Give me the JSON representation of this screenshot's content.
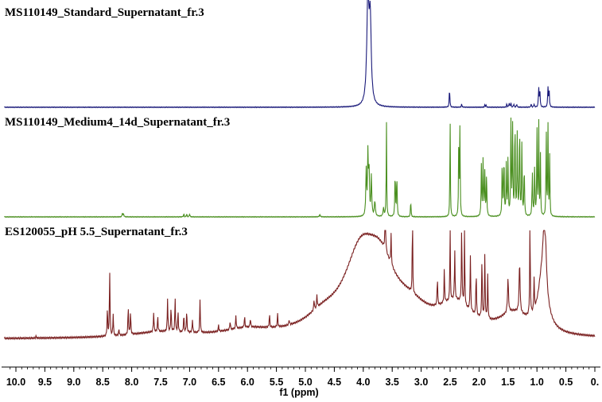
{
  "chart_data": {
    "type": "line",
    "xlabel": "f1 (ppm)",
    "x_reversed": true,
    "xlim": [
      10.2,
      0.0
    ],
    "ticks": [
      {
        "v": 10.0,
        "label": "10.0"
      },
      {
        "v": 9.5,
        "label": "9.5"
      },
      {
        "v": 9.0,
        "label": "9.0"
      },
      {
        "v": 8.5,
        "label": "8.5"
      },
      {
        "v": 8.0,
        "label": "8.0"
      },
      {
        "v": 7.5,
        "label": "7.5"
      },
      {
        "v": 7.0,
        "label": "7.0"
      },
      {
        "v": 6.5,
        "label": "6.5"
      },
      {
        "v": 6.0,
        "label": "6.0"
      },
      {
        "v": 5.5,
        "label": "5.5"
      },
      {
        "v": 5.0,
        "label": "5.0"
      },
      {
        "v": 4.5,
        "label": "4.5"
      },
      {
        "v": 4.0,
        "label": "4.0"
      },
      {
        "v": 3.5,
        "label": "3.5"
      },
      {
        "v": 3.0,
        "label": "3.0"
      },
      {
        "v": 2.5,
        "label": "2.5"
      },
      {
        "v": 2.0,
        "label": "2.0"
      },
      {
        "v": 1.5,
        "label": "1.5"
      },
      {
        "v": 1.0,
        "label": "1.0"
      },
      {
        "v": 0.5,
        "label": "0.5"
      },
      {
        "v": 0.0,
        "label": "0."
      }
    ],
    "grid": false,
    "series": [
      {
        "name": "MS110149_Standard_Supernatant_fr.3",
        "color": "#1a1a7a",
        "peaks": [
          [
            3.92,
            1.0,
            0.022
          ],
          [
            3.88,
            0.75,
            0.02
          ],
          [
            2.51,
            0.18,
            0.006
          ],
          [
            2.3,
            0.03,
            0.006
          ],
          [
            1.9,
            0.02,
            0.006
          ],
          [
            1.88,
            0.02,
            0.006
          ],
          [
            1.52,
            0.03,
            0.006
          ],
          [
            1.48,
            0.04,
            0.006
          ],
          [
            1.45,
            0.04,
            0.006
          ],
          [
            1.4,
            0.03,
            0.006
          ],
          [
            1.35,
            0.03,
            0.006
          ],
          [
            1.1,
            0.03,
            0.006
          ],
          [
            1.05,
            0.03,
            0.006
          ],
          [
            0.97,
            0.18,
            0.006
          ],
          [
            0.95,
            0.17,
            0.006
          ],
          [
            0.81,
            0.19,
            0.006
          ],
          [
            0.79,
            0.18,
            0.006
          ]
        ]
      },
      {
        "name": "MS110149_Medium4_14d_Supernatant_fr.3",
        "color": "#4a8f1f",
        "peaks": [
          [
            8.16,
            0.04,
            0.006
          ],
          [
            8.14,
            0.03,
            0.006
          ],
          [
            7.1,
            0.03,
            0.006
          ],
          [
            7.05,
            0.03,
            0.006
          ],
          [
            7.0,
            0.03,
            0.006
          ],
          [
            4.75,
            0.02,
            0.01
          ],
          [
            3.95,
            0.45,
            0.008
          ],
          [
            3.92,
            0.6,
            0.008
          ],
          [
            3.9,
            0.45,
            0.008
          ],
          [
            3.86,
            0.4,
            0.008
          ],
          [
            3.8,
            0.15,
            0.01
          ],
          [
            3.65,
            0.08,
            0.01
          ],
          [
            3.6,
            0.95,
            0.005
          ],
          [
            3.45,
            0.45,
            0.006
          ],
          [
            3.42,
            0.42,
            0.006
          ],
          [
            3.18,
            0.18,
            0.005
          ],
          [
            2.5,
            0.95,
            0.005
          ],
          [
            2.35,
            0.92,
            0.005
          ],
          [
            2.33,
            0.9,
            0.005
          ],
          [
            1.96,
            0.5,
            0.006
          ],
          [
            1.93,
            0.55,
            0.006
          ],
          [
            1.9,
            0.45,
            0.006
          ],
          [
            1.87,
            0.42,
            0.006
          ],
          [
            1.6,
            0.55,
            0.006
          ],
          [
            1.57,
            0.6,
            0.006
          ],
          [
            1.53,
            0.5,
            0.006
          ],
          [
            1.5,
            0.55,
            0.006
          ],
          [
            1.45,
            0.95,
            0.006
          ],
          [
            1.42,
            0.88,
            0.006
          ],
          [
            1.38,
            0.95,
            0.006
          ],
          [
            1.34,
            0.8,
            0.006
          ],
          [
            1.3,
            0.92,
            0.006
          ],
          [
            1.26,
            0.7,
            0.006
          ],
          [
            1.22,
            0.5,
            0.006
          ],
          [
            1.08,
            0.45,
            0.006
          ],
          [
            1.04,
            0.5,
            0.006
          ],
          [
            1.0,
            0.95,
            0.005
          ],
          [
            0.97,
            0.95,
            0.005
          ],
          [
            0.94,
            0.6,
            0.005
          ],
          [
            0.84,
            0.95,
            0.005
          ],
          [
            0.81,
            0.95,
            0.005
          ],
          [
            0.78,
            0.6,
            0.005
          ]
        ]
      },
      {
        "name": "ES120055_pH 5.5_Supernatant_fr.3",
        "color": "#7a2020",
        "broad": [
          [
            4.05,
            0.65,
            0.35
          ],
          [
            3.7,
            0.45,
            0.3
          ],
          [
            3.2,
            0.18,
            0.4
          ],
          [
            2.4,
            0.25,
            0.35
          ],
          [
            1.4,
            0.18,
            0.3
          ],
          [
            0.9,
            0.55,
            0.09
          ],
          [
            4.7,
            0.12,
            0.35
          ],
          [
            6.0,
            0.06,
            0.5
          ],
          [
            7.5,
            0.05,
            0.6
          ]
        ],
        "peaks": [
          [
            9.65,
            0.02,
            0.006
          ],
          [
            8.42,
            0.25,
            0.006
          ],
          [
            8.38,
            0.6,
            0.006
          ],
          [
            8.32,
            0.2,
            0.006
          ],
          [
            8.22,
            0.06,
            0.006
          ],
          [
            8.06,
            0.25,
            0.006
          ],
          [
            8.02,
            0.2,
            0.006
          ],
          [
            7.62,
            0.18,
            0.006
          ],
          [
            7.55,
            0.14,
            0.006
          ],
          [
            7.38,
            0.3,
            0.006
          ],
          [
            7.32,
            0.22,
            0.006
          ],
          [
            7.25,
            0.3,
            0.006
          ],
          [
            7.2,
            0.18,
            0.006
          ],
          [
            7.1,
            0.16,
            0.006
          ],
          [
            7.05,
            0.2,
            0.006
          ],
          [
            6.95,
            0.12,
            0.006
          ],
          [
            6.82,
            0.3,
            0.006
          ],
          [
            6.5,
            0.06,
            0.006
          ],
          [
            6.3,
            0.08,
            0.006
          ],
          [
            6.2,
            0.12,
            0.006
          ],
          [
            6.05,
            0.1,
            0.006
          ],
          [
            5.95,
            0.08,
            0.006
          ],
          [
            5.62,
            0.12,
            0.006
          ],
          [
            5.48,
            0.12,
            0.006
          ],
          [
            5.28,
            0.05,
            0.006
          ],
          [
            4.85,
            0.1,
            0.006
          ],
          [
            4.8,
            0.12,
            0.006
          ],
          [
            3.62,
            0.5,
            0.006
          ],
          [
            3.52,
            0.28,
            0.006
          ],
          [
            3.15,
            0.95,
            0.004
          ],
          [
            2.72,
            0.25,
            0.006
          ],
          [
            2.6,
            0.3,
            0.006
          ],
          [
            2.5,
            0.95,
            0.004
          ],
          [
            2.42,
            0.45,
            0.006
          ],
          [
            2.3,
            0.7,
            0.006
          ],
          [
            2.25,
            0.95,
            0.004
          ],
          [
            2.15,
            0.5,
            0.006
          ],
          [
            2.05,
            0.4,
            0.006
          ],
          [
            1.95,
            0.55,
            0.006
          ],
          [
            1.9,
            0.6,
            0.006
          ],
          [
            1.85,
            0.4,
            0.006
          ],
          [
            1.5,
            0.3,
            0.01
          ],
          [
            1.3,
            0.45,
            0.01
          ],
          [
            1.12,
            0.85,
            0.006
          ],
          [
            1.05,
            0.3,
            0.006
          ],
          [
            0.88,
            0.35,
            0.02
          ],
          [
            0.85,
            0.3,
            0.02
          ]
        ]
      }
    ]
  }
}
